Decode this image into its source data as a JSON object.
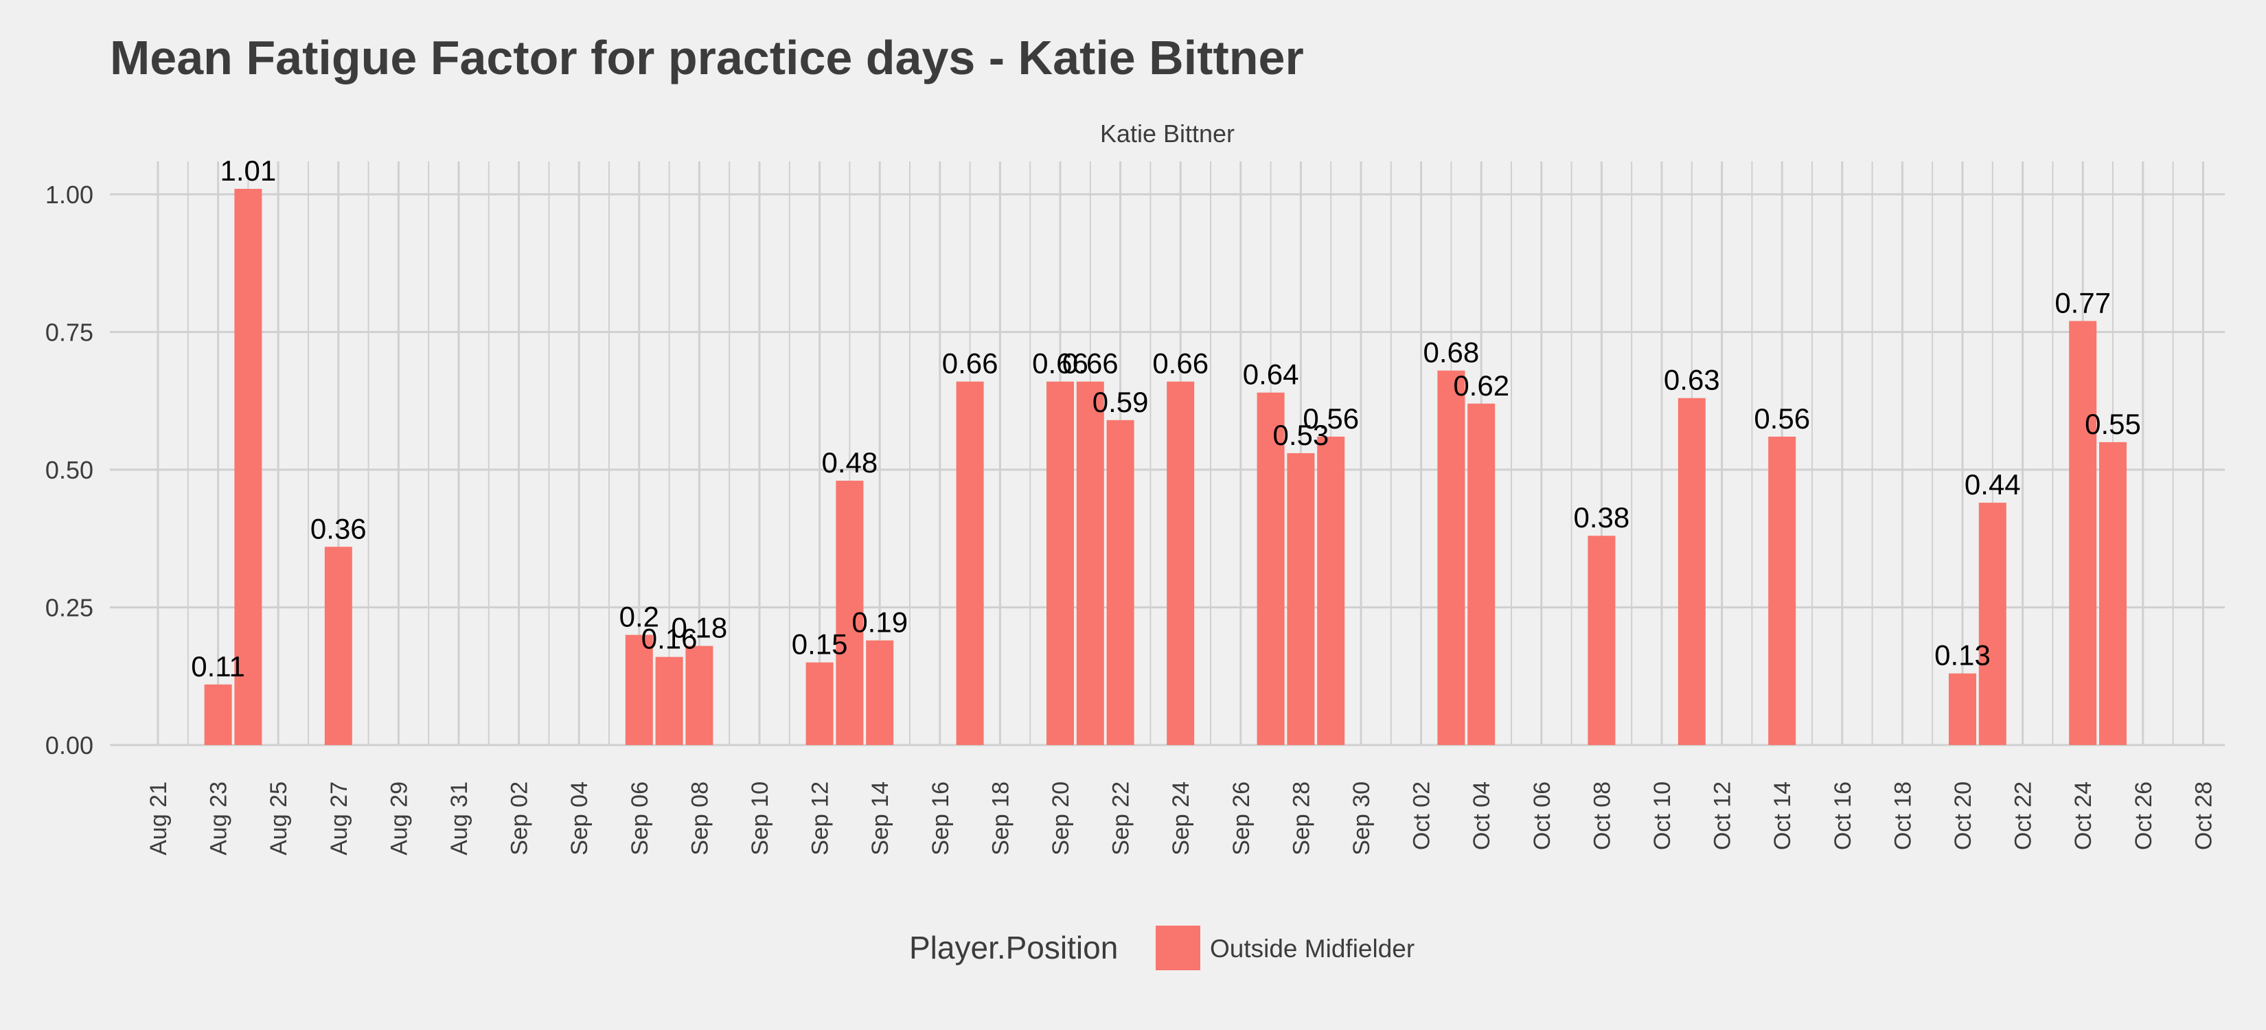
{
  "chart_data": {
    "type": "bar",
    "title": "Mean Fatigue Factor for practice days -  Katie Bittner",
    "subtitle": "Katie Bittner",
    "xlabel": "",
    "ylabel": "",
    "ylim": [
      -0.04,
      1.06
    ],
    "yticks": [
      0.0,
      0.25,
      0.5,
      0.75,
      1.0
    ],
    "ytick_labels": [
      "0.00",
      "0.25",
      "0.50",
      "0.75",
      "1.00"
    ],
    "x_tick_labels": [
      "Aug 21",
      "Aug 23",
      "Aug 25",
      "Aug 27",
      "Aug 29",
      "Aug 31",
      "Sep 02",
      "Sep 04",
      "Sep 06",
      "Sep 08",
      "Sep 10",
      "Sep 12",
      "Sep 14",
      "Sep 16",
      "Sep 18",
      "Sep 20",
      "Sep 22",
      "Sep 24",
      "Sep 26",
      "Sep 28",
      "Sep 30",
      "Oct 02",
      "Oct 04",
      "Oct 06",
      "Oct 08",
      "Oct 10",
      "Oct 12",
      "Oct 14",
      "Oct 16",
      "Oct 18",
      "Oct 20",
      "Oct 22",
      "Oct 24",
      "Oct 26",
      "Oct 28"
    ],
    "grid": true,
    "legend": {
      "title": "Player.Position",
      "position": "bottom",
      "entries": [
        {
          "label": "Outside Midfielder",
          "color": "#f8766d"
        }
      ]
    },
    "series": [
      {
        "color": "#f8766d",
        "points": [
          {
            "date": "Aug 23",
            "value": 0.11,
            "label": "0.11"
          },
          {
            "date": "Aug 24",
            "value": 1.01,
            "label": "1.01"
          },
          {
            "date": "Aug 27",
            "value": 0.36,
            "label": "0.36"
          },
          {
            "date": "Sep 06",
            "value": 0.2,
            "label": "0.2"
          },
          {
            "date": "Sep 07",
            "value": 0.16,
            "label": "0.16"
          },
          {
            "date": "Sep 08",
            "value": 0.18,
            "label": "0.18"
          },
          {
            "date": "Sep 12",
            "value": 0.15,
            "label": "0.15"
          },
          {
            "date": "Sep 13",
            "value": 0.48,
            "label": "0.48"
          },
          {
            "date": "Sep 14",
            "value": 0.19,
            "label": "0.19"
          },
          {
            "date": "Sep 17",
            "value": 0.66,
            "label": "0.66"
          },
          {
            "date": "Sep 20",
            "value": 0.66,
            "label": "0.66"
          },
          {
            "date": "Sep 21",
            "value": 0.66,
            "label": "0.66"
          },
          {
            "date": "Sep 22",
            "value": 0.59,
            "label": "0.59"
          },
          {
            "date": "Sep 24",
            "value": 0.66,
            "label": "0.66"
          },
          {
            "date": "Sep 27",
            "value": 0.64,
            "label": "0.64"
          },
          {
            "date": "Sep 28",
            "value": 0.53,
            "label": "0.53"
          },
          {
            "date": "Sep 29",
            "value": 0.56,
            "label": "0.56"
          },
          {
            "date": "Oct 03",
            "value": 0.68,
            "label": "0.68"
          },
          {
            "date": "Oct 04",
            "value": 0.62,
            "label": "0.62"
          },
          {
            "date": "Oct 08",
            "value": 0.38,
            "label": "0.38"
          },
          {
            "date": "Oct 11",
            "value": 0.63,
            "label": "0.63"
          },
          {
            "date": "Oct 14",
            "value": 0.56,
            "label": "0.56"
          },
          {
            "date": "Oct 20",
            "value": 0.13,
            "label": "0.13"
          },
          {
            "date": "Oct 21",
            "value": 0.44,
            "label": "0.44"
          },
          {
            "date": "Oct 24",
            "value": 0.77,
            "label": "0.77"
          },
          {
            "date": "Oct 25",
            "value": 0.55,
            "label": "0.55"
          }
        ]
      }
    ]
  }
}
